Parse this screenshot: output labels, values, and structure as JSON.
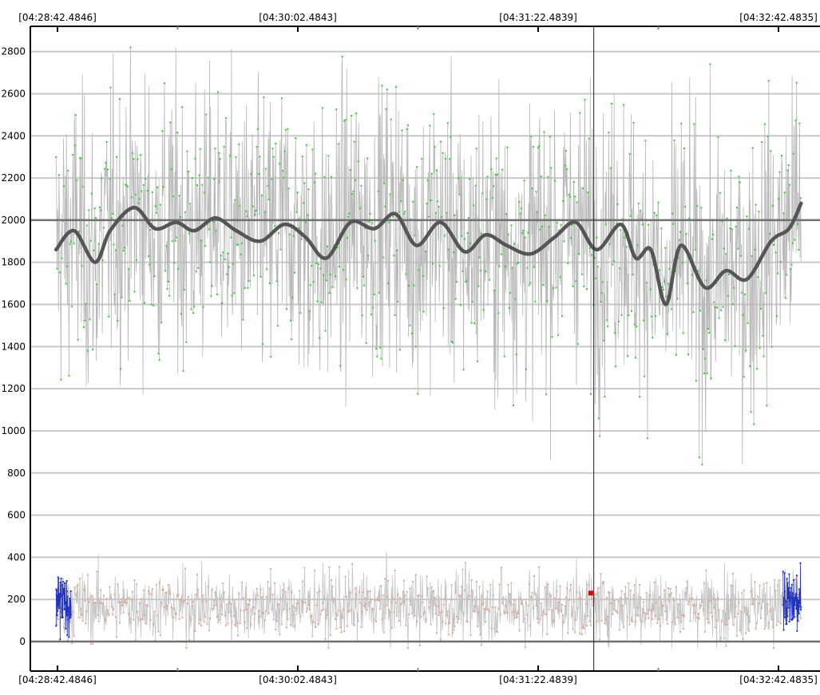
{
  "chart_data": {
    "type": "line",
    "title": "",
    "xlabel": "",
    "ylabel": "",
    "ylim": [
      -140,
      2920
    ],
    "y_ticks": [
      0,
      200,
      400,
      600,
      800,
      1000,
      1200,
      1400,
      1600,
      1800,
      2000,
      2200,
      2400,
      2600,
      2800
    ],
    "y_tick_labels": [
      "0",
      "200",
      "400",
      "600",
      "800",
      "1000",
      "1200",
      "1400",
      "1600",
      "1800",
      "2000",
      "2200",
      "2400",
      "2600",
      "2800"
    ],
    "reference_lines": [
      0,
      2000
    ],
    "x_ticks": [
      "[04:28:42.4846]",
      "[04:30:02.4843]",
      "[04:31:22.4839]",
      "[04:32:42.4835]"
    ],
    "x_top_labels": [
      "[04:28:42.4846]",
      "[04:30:02.4843]",
      "[04:31:22.4839]",
      "[04:32:42.4835]"
    ],
    "x_bottom_labels": [
      "[04:28:42.4846]",
      "[04:30:02.4843]",
      "[04:31:22.4839]",
      "[04:32:42.4835]"
    ],
    "cursor_time": "04:31:41",
    "grid": true,
    "legend": "none",
    "colors": {
      "upper_points": "#33cc33",
      "upper_line": "#b8b8b8",
      "smoothed_line": "#555555",
      "lower_points": "#e0a890",
      "lower_line": "#c4c4c4",
      "edge_points": "#2233bb",
      "marker": "#ee0000",
      "grid": "#c8c8c8",
      "reference": "#707070"
    },
    "series": [
      {
        "role": "upper-raw",
        "time_range": [
          "04:28:42",
          "04:32:50"
        ],
        "mean": 1880,
        "spread": 330,
        "min": 840,
        "max": 2820
      },
      {
        "role": "upper-smoothed",
        "x": [
          "04:28:42",
          "04:28:48",
          "04:28:55",
          "04:29:00",
          "04:29:08",
          "04:29:15",
          "04:29:22",
          "04:29:28",
          "04:29:35",
          "04:29:42",
          "04:29:50",
          "04:29:58",
          "04:30:05",
          "04:30:12",
          "04:30:20",
          "04:30:28",
          "04:30:35",
          "04:30:42",
          "04:30:50",
          "04:30:58",
          "04:31:05",
          "04:31:12",
          "04:31:20",
          "04:31:28",
          "04:31:35",
          "04:31:42",
          "04:31:50",
          "04:31:55",
          "04:32:00",
          "04:32:05",
          "04:32:10",
          "04:32:18",
          "04:32:25",
          "04:32:32",
          "04:32:40",
          "04:32:46",
          "04:32:50"
        ],
        "y": [
          1860,
          1950,
          1800,
          1950,
          2060,
          1960,
          1990,
          1950,
          2010,
          1950,
          1900,
          1980,
          1920,
          1820,
          1990,
          1960,
          2030,
          1880,
          1990,
          1850,
          1930,
          1880,
          1840,
          1920,
          1990,
          1860,
          1980,
          1820,
          1860,
          1600,
          1880,
          1680,
          1760,
          1720,
          1900,
          1960,
          2080
        ]
      },
      {
        "role": "lower-raw",
        "time_range": [
          "04:28:42",
          "04:32:50"
        ],
        "mean": 170,
        "spread": 80,
        "min": -30,
        "max": 450
      },
      {
        "role": "lower-edge",
        "time_ranges": [
          [
            "04:28:42",
            "04:28:47"
          ],
          [
            "04:32:44",
            "04:32:50"
          ]
        ],
        "mean": 180,
        "spread": 70
      },
      {
        "role": "marker",
        "x": [
          "04:31:40"
        ],
        "y": [
          230
        ]
      }
    ]
  }
}
